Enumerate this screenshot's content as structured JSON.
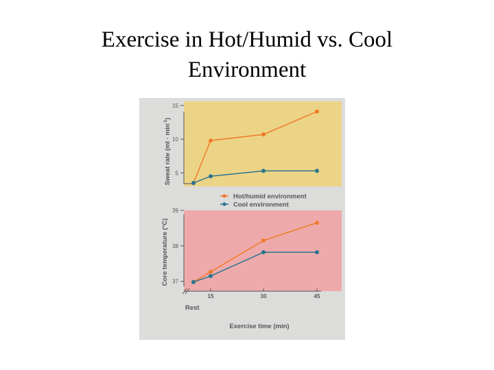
{
  "slide": {
    "title_line1": "Exercise in Hot/Humid vs. Cool",
    "title_line2": "Environment"
  },
  "colors": {
    "figure_background": "#dcdcdb",
    "top_panel": "#ecd486",
    "bottom_panel": "#eeaaaa",
    "hot_series": "#f07a2a",
    "cool_series": "#2a7390",
    "axis": "#555555"
  },
  "chart_data": [
    {
      "type": "line",
      "ylabel": "Sweat rate (ml · min",
      "ylabel_superscript": "-1",
      "ylabel_suffix": ")",
      "ylim": [
        3,
        15.6
      ],
      "yticks": [
        5,
        10,
        15
      ],
      "ytick_labels": [
        "5",
        "10",
        "15"
      ],
      "x": [
        0,
        15,
        30,
        45
      ],
      "series": [
        {
          "name": "Hot/humid environment",
          "values": [
            3.5,
            9.8,
            10.7,
            14.1
          ]
        },
        {
          "name": "Cool environment",
          "values": [
            3.5,
            4.5,
            5.3,
            5.3
          ]
        }
      ],
      "grid": false
    },
    {
      "type": "line",
      "ylabel": "Core temperature (°C)",
      "ylim": [
        36.8,
        39.0
      ],
      "yticks": [
        37,
        38,
        39
      ],
      "ytick_labels": [
        "37",
        "38",
        "39"
      ],
      "x": [
        0,
        15,
        30,
        45
      ],
      "xtick_labels": [
        "15",
        "30",
        "45"
      ],
      "rest_label": "Rest",
      "xlabel": "Exercise time (min)",
      "series": [
        {
          "name": "Hot/humid environment",
          "values": [
            36.98,
            37.27,
            38.15,
            38.65
          ]
        },
        {
          "name": "Cool environment",
          "values": [
            36.98,
            37.15,
            37.82,
            37.82
          ]
        }
      ],
      "grid": false
    }
  ],
  "legend": {
    "items": [
      {
        "label": "Hot/humid environment",
        "series": "hot"
      },
      {
        "label": "Cool environment",
        "series": "cool"
      }
    ],
    "placement": "between-panels"
  }
}
